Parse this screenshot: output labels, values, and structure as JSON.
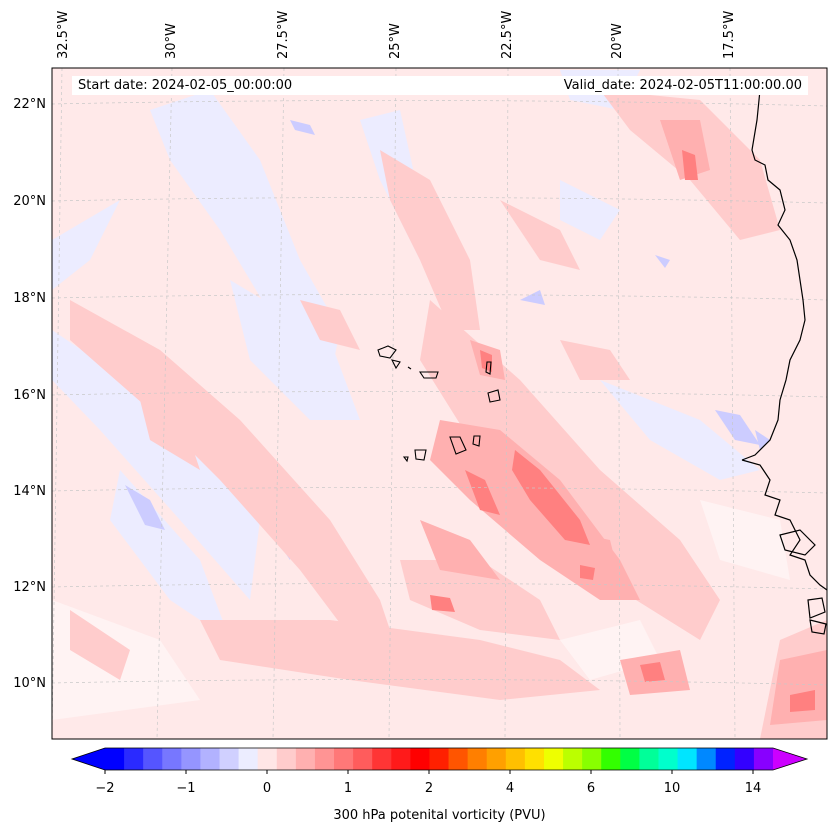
{
  "map": {
    "info": {
      "start_date": "Start date: 2024-02-05_00:00:00",
      "valid_date": "Valid_date: 2024-02-05T11:00:00.00"
    },
    "lon_labels": [
      "32.5°W",
      "30°W",
      "27.5°W",
      "25°W",
      "22.5°W",
      "20°W",
      "17.5°W"
    ],
    "lat_labels": [
      "22°N",
      "20°N",
      "18°N",
      "16°N",
      "14°N",
      "12°N",
      "10°N"
    ],
    "colorbar": {
      "label": "300 hPa potenital vorticity (PVU)",
      "ticks": [
        "−2",
        "−1",
        "0",
        "1",
        "2",
        "4",
        "6",
        "10",
        "14"
      ],
      "colors": [
        "#0000ff",
        "#2a2aff",
        "#5555ff",
        "#7777ff",
        "#9595ff",
        "#b2b2ff",
        "#d0d0ff",
        "#ecedff",
        "#ffe6e6",
        "#ffcccc",
        "#ffb0b0",
        "#ff9494",
        "#ff7878",
        "#ff5c5c",
        "#ff3535",
        "#ff1a1a",
        "#ff0000",
        "#ff2000",
        "#ff5500",
        "#ff7f00",
        "#ffa000",
        "#ffc000",
        "#ffe000",
        "#eeff00",
        "#bbff00",
        "#88ff00",
        "#33ff00",
        "#00ff44",
        "#00ff99",
        "#00ffcc",
        "#00e5ff",
        "#0088ff",
        "#0022ff",
        "#3300ff",
        "#8800ff"
      ],
      "under_color": "#0000ff",
      "over_color": "#cc00ff"
    },
    "colors": {
      "background": "#ffe8e8",
      "coast": "#000000",
      "grid": "#c8c8c8"
    }
  }
}
